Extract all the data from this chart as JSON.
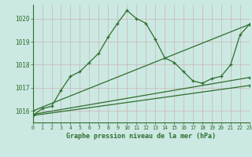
{
  "title": "Graphe pression niveau de la mer (hPa)",
  "bg_color": "#cce8e2",
  "grid_color": "#b8d8d0",
  "axis_color": "#2d6e2d",
  "line_color": "#2d6e2d",
  "xlim": [
    0,
    23
  ],
  "ylim": [
    1015.5,
    1020.6
  ],
  "yticks": [
    1016,
    1017,
    1018,
    1019,
    1020
  ],
  "xticks": [
    0,
    1,
    2,
    3,
    4,
    5,
    6,
    7,
    8,
    9,
    10,
    11,
    12,
    13,
    14,
    15,
    16,
    17,
    18,
    19,
    20,
    21,
    22,
    23
  ],
  "main_x": [
    0,
    1,
    2,
    3,
    4,
    5,
    6,
    7,
    8,
    9,
    10,
    11,
    12,
    13,
    14,
    15,
    16,
    17,
    18,
    19,
    20,
    21,
    22,
    23
  ],
  "main_y": [
    1015.8,
    1016.1,
    1016.2,
    1016.9,
    1017.5,
    1017.7,
    1018.1,
    1018.5,
    1019.2,
    1019.8,
    1020.35,
    1020.0,
    1019.8,
    1019.1,
    1018.3,
    1018.1,
    1017.7,
    1017.3,
    1017.2,
    1017.4,
    1017.5,
    1018.0,
    1019.3,
    1019.75
  ],
  "line1_x": [
    0,
    23
  ],
  "line1_y": [
    1016.0,
    1019.75
  ],
  "line2_x": [
    0,
    23
  ],
  "line2_y": [
    1015.85,
    1017.45
  ],
  "line3_x": [
    0,
    23
  ],
  "line3_y": [
    1015.8,
    1017.1
  ]
}
